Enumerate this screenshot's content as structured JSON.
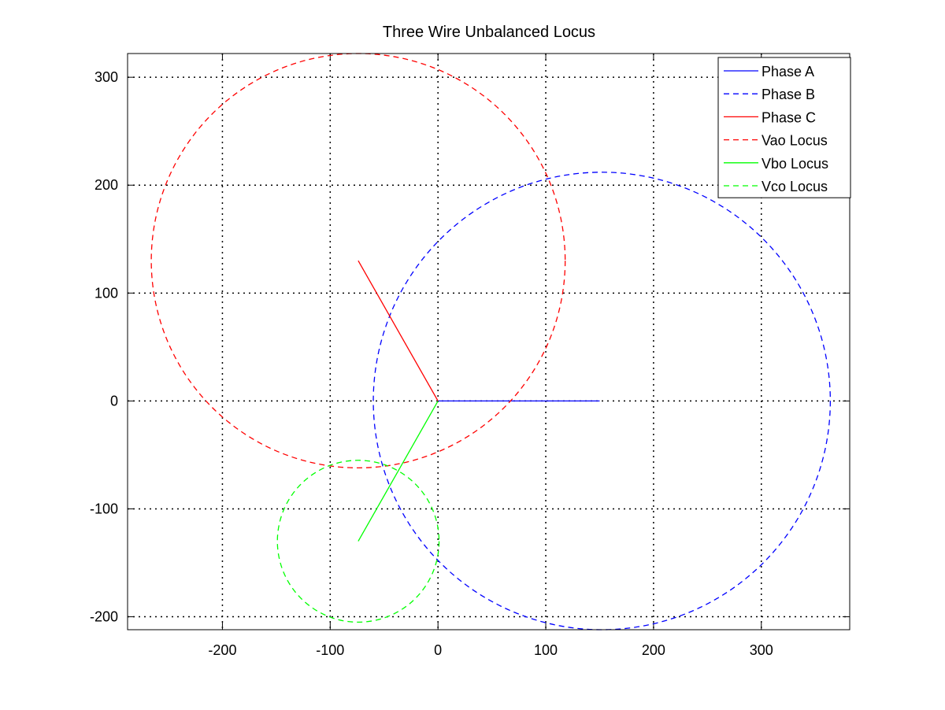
{
  "chart_data": {
    "type": "line",
    "title": "Three Wire Unbalanced Locus",
    "xlabel": "",
    "ylabel": "",
    "xlim": [
      -288,
      382
    ],
    "ylim": [
      -212,
      322
    ],
    "xticks": [
      -200,
      -100,
      0,
      100,
      200,
      300
    ],
    "yticks": [
      -200,
      -100,
      0,
      100,
      200,
      300
    ],
    "xtick_labels": [
      "-200",
      "-100",
      "0",
      "100",
      "200",
      "300"
    ],
    "ytick_labels": [
      "-200",
      "-100",
      "0",
      "100",
      "200",
      "300"
    ],
    "grid": true,
    "legend_position": "top-right",
    "series": [
      {
        "name": "Phase A",
        "kind": "segment",
        "style": "solid",
        "color": "#0000ff",
        "x": [
          0,
          150
        ],
        "y": [
          0,
          0
        ]
      },
      {
        "name": "Phase B",
        "kind": "circle",
        "style": "dashed",
        "color": "#0000ff",
        "center": [
          152,
          0
        ],
        "radius": 212
      },
      {
        "name": "Phase C",
        "kind": "segment",
        "style": "solid",
        "color": "#ff0000",
        "x": [
          0,
          -74
        ],
        "y": [
          0,
          130
        ]
      },
      {
        "name": "Vao Locus",
        "kind": "circle",
        "style": "dashed",
        "color": "#ff0000",
        "center": [
          -74,
          130
        ],
        "radius": 192
      },
      {
        "name": "Vbo Locus",
        "kind": "segment",
        "style": "solid",
        "color": "#00ff00",
        "x": [
          0,
          -74
        ],
        "y": [
          0,
          -130
        ]
      },
      {
        "name": "Vco Locus",
        "kind": "circle",
        "style": "dashed",
        "color": "#00ff00",
        "center": [
          -74,
          -130
        ],
        "radius": 75
      }
    ]
  }
}
